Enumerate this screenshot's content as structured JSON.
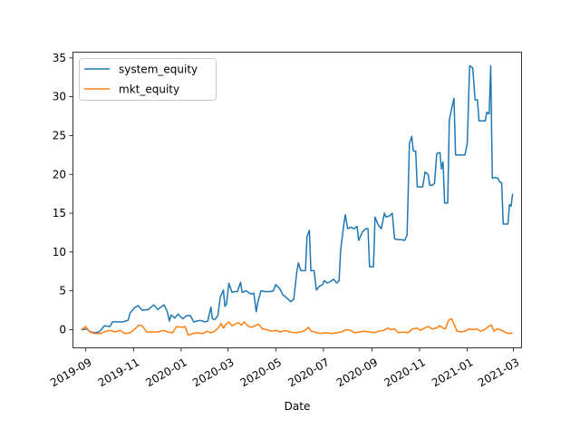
{
  "chart_data": {
    "type": "line",
    "title": "",
    "xlabel": "Date",
    "ylabel": "",
    "xlim": [
      "2019-08-15",
      "2021-03-12"
    ],
    "ylim": [
      -2.4,
      35.8
    ],
    "x_ticks": [
      {
        "date": "2019-09-01",
        "label": "2019-09"
      },
      {
        "date": "2019-11-01",
        "label": "2019-11"
      },
      {
        "date": "2020-01-01",
        "label": "2020-01"
      },
      {
        "date": "2020-03-01",
        "label": "2020-03"
      },
      {
        "date": "2020-05-01",
        "label": "2020-05"
      },
      {
        "date": "2020-07-01",
        "label": "2020-07"
      },
      {
        "date": "2020-09-01",
        "label": "2020-09"
      },
      {
        "date": "2020-11-01",
        "label": "2020-11"
      },
      {
        "date": "2021-01-01",
        "label": "2021-01"
      },
      {
        "date": "2021-03-01",
        "label": "2021-03"
      }
    ],
    "y_ticks": [
      0,
      5,
      10,
      15,
      20,
      25,
      30,
      35
    ],
    "grid": false,
    "legend": "upper-left",
    "series": [
      {
        "name": "system_equity",
        "color": "#1f77b4",
        "points": [
          [
            "2019-08-26",
            0.0
          ],
          [
            "2019-09-03",
            0.1
          ],
          [
            "2019-09-05",
            -0.2
          ],
          [
            "2019-09-12",
            -0.4
          ],
          [
            "2019-09-18",
            -0.3
          ],
          [
            "2019-09-25",
            0.5
          ],
          [
            "2019-10-02",
            0.4
          ],
          [
            "2019-10-05",
            1.0
          ],
          [
            "2019-10-10",
            1.0
          ],
          [
            "2019-10-18",
            1.0
          ],
          [
            "2019-10-25",
            1.2
          ],
          [
            "2019-10-28",
            2.2
          ],
          [
            "2019-11-02",
            2.8
          ],
          [
            "2019-11-07",
            3.1
          ],
          [
            "2019-11-12",
            2.5
          ],
          [
            "2019-11-20",
            2.6
          ],
          [
            "2019-11-27",
            3.2
          ],
          [
            "2019-12-02",
            2.6
          ],
          [
            "2019-12-10",
            3.2
          ],
          [
            "2019-12-14",
            2.4
          ],
          [
            "2019-12-17",
            1.1
          ],
          [
            "2019-12-19",
            1.9
          ],
          [
            "2019-12-24",
            1.5
          ],
          [
            "2019-12-28",
            2.0
          ],
          [
            "2020-01-03",
            1.4
          ],
          [
            "2020-01-08",
            1.8
          ],
          [
            "2020-01-13",
            1.8
          ],
          [
            "2020-01-17",
            1.0
          ],
          [
            "2020-01-25",
            1.2
          ],
          [
            "2020-02-01",
            1.0
          ],
          [
            "2020-02-04",
            1.1
          ],
          [
            "2020-02-08",
            2.9
          ],
          [
            "2020-02-10",
            1.4
          ],
          [
            "2020-02-13",
            1.3
          ],
          [
            "2020-02-17",
            1.8
          ],
          [
            "2020-02-20",
            4.2
          ],
          [
            "2020-02-24",
            5.1
          ],
          [
            "2020-02-26",
            3.0
          ],
          [
            "2020-02-28",
            3.3
          ],
          [
            "2020-03-02",
            6.0
          ],
          [
            "2020-03-06",
            4.8
          ],
          [
            "2020-03-09",
            4.9
          ],
          [
            "2020-03-13",
            4.9
          ],
          [
            "2020-03-17",
            6.1
          ],
          [
            "2020-03-19",
            4.8
          ],
          [
            "2020-03-24",
            5.0
          ],
          [
            "2020-03-30",
            4.6
          ],
          [
            "2020-04-03",
            4.7
          ],
          [
            "2020-04-06",
            2.3
          ],
          [
            "2020-04-08",
            3.5
          ],
          [
            "2020-04-12",
            5.0
          ],
          [
            "2020-04-17",
            4.9
          ],
          [
            "2020-04-24",
            4.9
          ],
          [
            "2020-04-28",
            5.0
          ],
          [
            "2020-05-01",
            5.8
          ],
          [
            "2020-05-06",
            5.3
          ],
          [
            "2020-05-10",
            4.5
          ],
          [
            "2020-05-16",
            4.0
          ],
          [
            "2020-05-20",
            3.6
          ],
          [
            "2020-05-24",
            3.9
          ],
          [
            "2020-05-28",
            7.5
          ],
          [
            "2020-05-30",
            8.6
          ],
          [
            "2020-06-02",
            7.6
          ],
          [
            "2020-06-08",
            7.6
          ],
          [
            "2020-06-10",
            12.0
          ],
          [
            "2020-06-13",
            12.8
          ],
          [
            "2020-06-15",
            7.6
          ],
          [
            "2020-06-19",
            7.6
          ],
          [
            "2020-06-22",
            5.1
          ],
          [
            "2020-06-26",
            5.6
          ],
          [
            "2020-06-30",
            5.8
          ],
          [
            "2020-07-02",
            6.3
          ],
          [
            "2020-07-06",
            6.0
          ],
          [
            "2020-07-10",
            6.2
          ],
          [
            "2020-07-14",
            6.5
          ],
          [
            "2020-07-18",
            6.0
          ],
          [
            "2020-07-21",
            6.3
          ],
          [
            "2020-07-23",
            10.2
          ],
          [
            "2020-07-27",
            13.5
          ],
          [
            "2020-07-29",
            14.8
          ],
          [
            "2020-08-01",
            13.0
          ],
          [
            "2020-08-05",
            13.2
          ],
          [
            "2020-08-09",
            13.0
          ],
          [
            "2020-08-13",
            13.3
          ],
          [
            "2020-08-15",
            11.5
          ],
          [
            "2020-08-20",
            12.6
          ],
          [
            "2020-08-24",
            13.0
          ],
          [
            "2020-08-27",
            13.0
          ],
          [
            "2020-08-29",
            8.1
          ],
          [
            "2020-09-03",
            8.1
          ],
          [
            "2020-09-05",
            14.5
          ],
          [
            "2020-09-09",
            13.5
          ],
          [
            "2020-09-13",
            13.0
          ],
          [
            "2020-09-17",
            15.0
          ],
          [
            "2020-09-19",
            14.5
          ],
          [
            "2020-09-24",
            14.7
          ],
          [
            "2020-09-27",
            15.0
          ],
          [
            "2020-09-30",
            11.7
          ],
          [
            "2020-10-04",
            11.6
          ],
          [
            "2020-10-08",
            11.6
          ],
          [
            "2020-10-13",
            11.5
          ],
          [
            "2020-10-16",
            12.2
          ],
          [
            "2020-10-19",
            24.0
          ],
          [
            "2020-10-22",
            24.9
          ],
          [
            "2020-10-24",
            23.0
          ],
          [
            "2020-10-27",
            23.0
          ],
          [
            "2020-10-29",
            18.4
          ],
          [
            "2020-11-02",
            18.4
          ],
          [
            "2020-11-05",
            18.4
          ],
          [
            "2020-11-08",
            20.3
          ],
          [
            "2020-11-12",
            20.0
          ],
          [
            "2020-11-14",
            18.6
          ],
          [
            "2020-11-17",
            18.6
          ],
          [
            "2020-11-20",
            18.8
          ],
          [
            "2020-11-23",
            22.7
          ],
          [
            "2020-11-27",
            22.8
          ],
          [
            "2020-11-29",
            20.7
          ],
          [
            "2020-12-01",
            21.6
          ],
          [
            "2020-12-03",
            16.3
          ],
          [
            "2020-12-07",
            16.3
          ],
          [
            "2020-12-09",
            27.0
          ],
          [
            "2020-12-12",
            28.5
          ],
          [
            "2020-12-15",
            29.8
          ],
          [
            "2020-12-17",
            22.5
          ],
          [
            "2020-12-21",
            22.5
          ],
          [
            "2020-12-25",
            22.5
          ],
          [
            "2020-12-29",
            22.5
          ],
          [
            "2021-01-01",
            24.0
          ],
          [
            "2021-01-04",
            34.0
          ],
          [
            "2021-01-08",
            33.7
          ],
          [
            "2021-01-11",
            29.6
          ],
          [
            "2021-01-14",
            29.6
          ],
          [
            "2021-01-16",
            26.9
          ],
          [
            "2021-01-20",
            26.9
          ],
          [
            "2021-01-24",
            26.9
          ],
          [
            "2021-01-26",
            28.0
          ],
          [
            "2021-01-29",
            27.8
          ],
          [
            "2021-01-31",
            34.0
          ],
          [
            "2021-02-02",
            19.5
          ],
          [
            "2021-02-05",
            19.6
          ],
          [
            "2021-02-09",
            19.5
          ],
          [
            "2021-02-12",
            19.0
          ],
          [
            "2021-02-14",
            18.9
          ],
          [
            "2021-02-16",
            13.6
          ],
          [
            "2021-02-19",
            13.6
          ],
          [
            "2021-02-22",
            13.6
          ],
          [
            "2021-02-24",
            16.1
          ],
          [
            "2021-02-26",
            15.9
          ],
          [
            "2021-02-28",
            17.5
          ]
        ]
      },
      {
        "name": "mkt_equity",
        "color": "#ff7f0e",
        "points": [
          [
            "2019-08-26",
            0.0
          ],
          [
            "2019-09-01",
            0.4
          ],
          [
            "2019-09-06",
            -0.3
          ],
          [
            "2019-09-13",
            -0.5
          ],
          [
            "2019-09-20",
            -0.5
          ],
          [
            "2019-09-27",
            -0.2
          ],
          [
            "2019-10-04",
            -0.1
          ],
          [
            "2019-10-08",
            -0.3
          ],
          [
            "2019-10-15",
            -0.1
          ],
          [
            "2019-10-21",
            -0.5
          ],
          [
            "2019-10-28",
            -0.4
          ],
          [
            "2019-11-04",
            0.2
          ],
          [
            "2019-11-08",
            0.6
          ],
          [
            "2019-11-12",
            0.5
          ],
          [
            "2019-11-18",
            -0.3
          ],
          [
            "2019-11-25",
            -0.3
          ],
          [
            "2019-12-02",
            -0.3
          ],
          [
            "2019-12-09",
            -0.1
          ],
          [
            "2019-12-15",
            -0.3
          ],
          [
            "2019-12-21",
            -0.4
          ],
          [
            "2019-12-26",
            0.4
          ],
          [
            "2020-01-02",
            0.3
          ],
          [
            "2020-01-06",
            0.4
          ],
          [
            "2020-01-10",
            -0.7
          ],
          [
            "2020-01-16",
            -0.5
          ],
          [
            "2020-01-22",
            -0.4
          ],
          [
            "2020-01-29",
            -0.5
          ],
          [
            "2020-02-03",
            -0.2
          ],
          [
            "2020-02-08",
            -0.4
          ],
          [
            "2020-02-13",
            -0.2
          ],
          [
            "2020-02-18",
            0.3
          ],
          [
            "2020-02-21",
            0.8
          ],
          [
            "2020-02-24",
            0.2
          ],
          [
            "2020-02-27",
            0.6
          ],
          [
            "2020-03-02",
            1.0
          ],
          [
            "2020-03-06",
            0.5
          ],
          [
            "2020-03-10",
            0.7
          ],
          [
            "2020-03-14",
            0.9
          ],
          [
            "2020-03-18",
            0.6
          ],
          [
            "2020-03-22",
            1.0
          ],
          [
            "2020-03-26",
            0.5
          ],
          [
            "2020-03-31",
            0.3
          ],
          [
            "2020-04-04",
            0.5
          ],
          [
            "2020-04-09",
            0.7
          ],
          [
            "2020-04-14",
            0.1
          ],
          [
            "2020-04-20",
            0.0
          ],
          [
            "2020-04-25",
            -0.2
          ],
          [
            "2020-05-01",
            -0.1
          ],
          [
            "2020-05-07",
            -0.3
          ],
          [
            "2020-05-13",
            -0.1
          ],
          [
            "2020-05-19",
            -0.3
          ],
          [
            "2020-05-26",
            -0.4
          ],
          [
            "2020-06-02",
            -0.3
          ],
          [
            "2020-06-07",
            -0.1
          ],
          [
            "2020-06-12",
            0.3
          ],
          [
            "2020-06-15",
            -0.2
          ],
          [
            "2020-06-20",
            -0.3
          ],
          [
            "2020-06-27",
            -0.5
          ],
          [
            "2020-07-04",
            -0.4
          ],
          [
            "2020-07-11",
            -0.5
          ],
          [
            "2020-07-18",
            -0.4
          ],
          [
            "2020-07-24",
            -0.3
          ],
          [
            "2020-07-30",
            0.0
          ],
          [
            "2020-08-05",
            -0.1
          ],
          [
            "2020-08-10",
            -0.4
          ],
          [
            "2020-08-16",
            -0.3
          ],
          [
            "2020-08-22",
            -0.2
          ],
          [
            "2020-08-29",
            -0.3
          ],
          [
            "2020-09-04",
            -0.4
          ],
          [
            "2020-09-10",
            -0.2
          ],
          [
            "2020-09-16",
            -0.1
          ],
          [
            "2020-09-21",
            0.2
          ],
          [
            "2020-09-25",
            0.0
          ],
          [
            "2020-09-30",
            0.1
          ],
          [
            "2020-10-05",
            -0.4
          ],
          [
            "2020-10-11",
            -0.3
          ],
          [
            "2020-10-17",
            -0.4
          ],
          [
            "2020-10-23",
            0.1
          ],
          [
            "2020-10-29",
            0.2
          ],
          [
            "2020-11-02",
            -0.1
          ],
          [
            "2020-11-07",
            0.2
          ],
          [
            "2020-11-12",
            0.4
          ],
          [
            "2020-11-17",
            0.1
          ],
          [
            "2020-11-22",
            0.2
          ],
          [
            "2020-11-27",
            0.5
          ],
          [
            "2020-12-01",
            0.2
          ],
          [
            "2020-12-04",
            0.1
          ],
          [
            "2020-12-08",
            1.2
          ],
          [
            "2020-12-12",
            1.4
          ],
          [
            "2020-12-15",
            0.7
          ],
          [
            "2020-12-19",
            -0.2
          ],
          [
            "2020-12-24",
            -0.3
          ],
          [
            "2020-12-29",
            -0.2
          ],
          [
            "2021-01-03",
            0.1
          ],
          [
            "2021-01-08",
            0.0
          ],
          [
            "2021-01-13",
            0.1
          ],
          [
            "2021-01-18",
            -0.2
          ],
          [
            "2021-01-23",
            0.0
          ],
          [
            "2021-01-28",
            0.4
          ],
          [
            "2021-02-01",
            0.6
          ],
          [
            "2021-02-04",
            -0.2
          ],
          [
            "2021-02-08",
            0.1
          ],
          [
            "2021-02-12",
            0.0
          ],
          [
            "2021-02-16",
            -0.2
          ],
          [
            "2021-02-20",
            -0.4
          ],
          [
            "2021-02-24",
            -0.5
          ],
          [
            "2021-02-28",
            -0.4
          ]
        ]
      }
    ]
  }
}
